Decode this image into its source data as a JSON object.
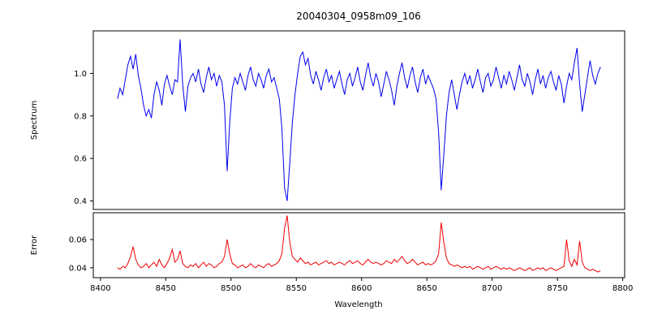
{
  "figure": {
    "background": "#ffffff",
    "axis_color": "#000000"
  },
  "chart_data": {
    "type": "line",
    "title": "20040304_0958m09_106",
    "xlabel": "Wavelength",
    "x_start": 8413,
    "x_step": 2,
    "xlim": [
      8394.5,
      8801.5
    ],
    "x_ticks": [
      {
        "v": 8400,
        "label": "8400"
      },
      {
        "v": 8450,
        "label": "8450"
      },
      {
        "v": 8500,
        "label": "8500"
      },
      {
        "v": 8550,
        "label": "8550"
      },
      {
        "v": 8600,
        "label": "8600"
      },
      {
        "v": 8650,
        "label": "8650"
      },
      {
        "v": 8700,
        "label": "8700"
      },
      {
        "v": 8750,
        "label": "8750"
      },
      {
        "v": 8800,
        "label": "8800"
      }
    ],
    "panels": [
      {
        "name": "spectrum",
        "ylabel": "Spectrum",
        "color": "#0000ee",
        "ylim": [
          0.36,
          1.2
        ],
        "y_ticks": [
          {
            "v": 0.4,
            "label": "0.4"
          },
          {
            "v": 0.6,
            "label": "0.6"
          },
          {
            "v": 0.8,
            "label": "0.8"
          },
          {
            "v": 1.0,
            "label": "1.0"
          }
        ],
        "values": [
          0.88,
          0.93,
          0.9,
          0.97,
          1.04,
          1.08,
          1.02,
          1.09,
          0.99,
          0.93,
          0.85,
          0.8,
          0.83,
          0.79,
          0.9,
          0.96,
          0.92,
          0.85,
          0.95,
          0.99,
          0.94,
          0.9,
          0.97,
          0.96,
          1.16,
          0.95,
          0.82,
          0.94,
          0.98,
          1.0,
          0.96,
          1.02,
          0.95,
          0.91,
          0.98,
          1.03,
          0.97,
          1.0,
          0.94,
          0.99,
          0.96,
          0.85,
          0.54,
          0.77,
          0.93,
          0.98,
          0.95,
          1.0,
          0.96,
          0.92,
          0.99,
          1.03,
          0.97,
          0.94,
          1.0,
          0.97,
          0.93,
          0.99,
          1.02,
          0.96,
          0.98,
          0.93,
          0.88,
          0.74,
          0.46,
          0.4,
          0.58,
          0.77,
          0.9,
          1.0,
          1.08,
          1.1,
          1.04,
          1.07,
          0.99,
          0.95,
          1.01,
          0.97,
          0.92,
          0.98,
          1.02,
          0.96,
          0.99,
          0.93,
          0.97,
          1.01,
          0.95,
          0.9,
          0.97,
          1.0,
          0.94,
          0.98,
          1.03,
          0.96,
          0.92,
          0.99,
          1.05,
          0.98,
          0.94,
          1.0,
          0.96,
          0.89,
          0.95,
          1.01,
          0.97,
          0.92,
          0.85,
          0.94,
          1.0,
          1.05,
          0.98,
          0.93,
          0.99,
          1.03,
          0.96,
          0.91,
          0.98,
          1.02,
          0.95,
          0.99,
          0.96,
          0.93,
          0.88,
          0.72,
          0.45,
          0.62,
          0.8,
          0.91,
          0.97,
          0.9,
          0.83,
          0.9,
          0.96,
          1.0,
          0.95,
          0.99,
          0.93,
          0.97,
          1.02,
          0.96,
          0.91,
          0.98,
          1.0,
          0.94,
          0.97,
          1.03,
          0.98,
          0.93,
          0.99,
          0.95,
          1.01,
          0.97,
          0.92,
          0.98,
          1.04,
          0.97,
          0.94,
          1.0,
          0.96,
          0.9,
          0.97,
          1.02,
          0.95,
          0.99,
          0.93,
          0.98,
          1.01,
          0.96,
          0.92,
          0.99,
          0.95,
          0.86,
          0.94,
          1.0,
          0.97,
          1.05,
          1.12,
          0.95,
          0.82,
          0.9,
          0.98,
          1.06,
          0.99,
          0.95,
          1.0,
          1.03
        ]
      },
      {
        "name": "error",
        "ylabel": "Error",
        "color": "#ee0000",
        "ylim": [
          0.033,
          0.079
        ],
        "y_ticks": [
          {
            "v": 0.04,
            "label": "0.04"
          },
          {
            "v": 0.06,
            "label": "0.06"
          }
        ],
        "values": [
          0.04,
          0.039,
          0.041,
          0.04,
          0.043,
          0.048,
          0.055,
          0.046,
          0.042,
          0.04,
          0.041,
          0.043,
          0.04,
          0.042,
          0.044,
          0.041,
          0.046,
          0.042,
          0.04,
          0.043,
          0.047,
          0.053,
          0.044,
          0.046,
          0.052,
          0.043,
          0.041,
          0.04,
          0.042,
          0.041,
          0.043,
          0.04,
          0.042,
          0.044,
          0.041,
          0.043,
          0.042,
          0.04,
          0.041,
          0.043,
          0.044,
          0.048,
          0.06,
          0.05,
          0.043,
          0.042,
          0.04,
          0.041,
          0.042,
          0.04,
          0.041,
          0.043,
          0.041,
          0.04,
          0.042,
          0.041,
          0.04,
          0.042,
          0.043,
          0.041,
          0.042,
          0.043,
          0.045,
          0.05,
          0.068,
          0.077,
          0.058,
          0.048,
          0.046,
          0.044,
          0.047,
          0.045,
          0.043,
          0.044,
          0.042,
          0.043,
          0.044,
          0.042,
          0.043,
          0.044,
          0.045,
          0.043,
          0.044,
          0.042,
          0.043,
          0.044,
          0.043,
          0.042,
          0.044,
          0.045,
          0.043,
          0.044,
          0.045,
          0.043,
          0.042,
          0.044,
          0.046,
          0.044,
          0.043,
          0.044,
          0.043,
          0.042,
          0.043,
          0.045,
          0.044,
          0.043,
          0.046,
          0.044,
          0.046,
          0.048,
          0.045,
          0.043,
          0.044,
          0.046,
          0.044,
          0.042,
          0.043,
          0.044,
          0.042,
          0.043,
          0.042,
          0.043,
          0.045,
          0.05,
          0.072,
          0.058,
          0.047,
          0.043,
          0.042,
          0.041,
          0.042,
          0.041,
          0.04,
          0.041,
          0.04,
          0.041,
          0.039,
          0.04,
          0.041,
          0.04,
          0.039,
          0.04,
          0.041,
          0.039,
          0.04,
          0.041,
          0.04,
          0.039,
          0.04,
          0.039,
          0.04,
          0.039,
          0.038,
          0.039,
          0.04,
          0.039,
          0.038,
          0.039,
          0.04,
          0.038,
          0.039,
          0.04,
          0.039,
          0.04,
          0.038,
          0.039,
          0.04,
          0.039,
          0.038,
          0.039,
          0.04,
          0.041,
          0.06,
          0.045,
          0.041,
          0.046,
          0.042,
          0.059,
          0.044,
          0.04,
          0.039,
          0.038,
          0.039,
          0.038,
          0.037,
          0.038
        ]
      }
    ]
  }
}
